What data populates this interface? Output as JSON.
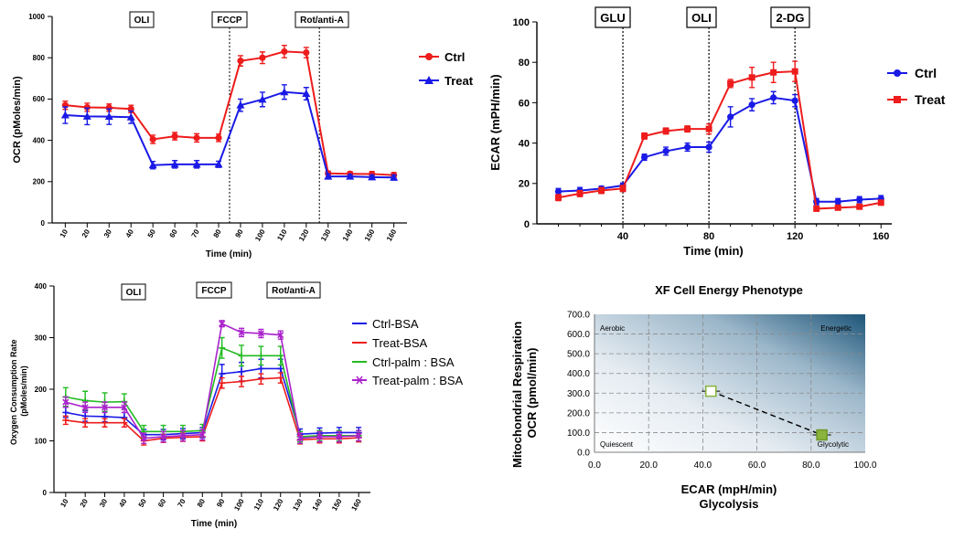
{
  "chart_data": [
    {
      "type": "line",
      "ylabel": "OCR (pMoles/min)",
      "xlabel": "Time (min)",
      "ylim": [
        0,
        1000
      ],
      "yticks": [
        0,
        200,
        400,
        600,
        800,
        1000
      ],
      "x": [
        10,
        20,
        30,
        40,
        50,
        60,
        70,
        80,
        90,
        100,
        110,
        120,
        130,
        140,
        150,
        160
      ],
      "injections": [
        {
          "label": "OLI",
          "x": null
        },
        {
          "label": "FCCP",
          "x": 85
        },
        {
          "label": "Rot/anti-A",
          "x": 126
        }
      ],
      "series": [
        {
          "name": "Ctrl",
          "color": "#ee1c1c",
          "marker": "circle",
          "values": [
            570,
            560,
            558,
            552,
            405,
            420,
            412,
            412,
            785,
            800,
            830,
            825,
            240,
            238,
            237,
            232
          ],
          "errors": [
            20,
            20,
            18,
            18,
            20,
            18,
            20,
            18,
            25,
            28,
            30,
            25,
            10,
            10,
            12,
            12
          ]
        },
        {
          "name": "Treat",
          "color": "#1a1ae6",
          "marker": "triangle",
          "values": [
            522,
            516,
            515,
            512,
            280,
            284,
            284,
            284,
            570,
            598,
            634,
            626,
            225,
            225,
            222,
            220
          ],
          "errors": [
            40,
            40,
            38,
            30,
            18,
            18,
            18,
            15,
            30,
            35,
            35,
            30,
            12,
            10,
            10,
            12
          ]
        }
      ]
    },
    {
      "type": "line",
      "ylabel": "ECAR (mPH/min)",
      "xlabel": "Time (min)",
      "ylim": [
        0,
        100
      ],
      "xlim": [
        0,
        165
      ],
      "yticks": [
        0,
        20,
        40,
        60,
        80,
        100
      ],
      "xticks": [
        40,
        80,
        120,
        160
      ],
      "x": [
        10,
        20,
        30,
        40,
        50,
        60,
        70,
        80,
        90,
        100,
        110,
        120,
        130,
        140,
        150,
        160
      ],
      "injections": [
        {
          "label": "GLU",
          "x": 40
        },
        {
          "label": "OLI",
          "x": 80
        },
        {
          "label": "2-DG",
          "x": 120
        }
      ],
      "series": [
        {
          "name": "Ctrl",
          "color": "#1a1ae6",
          "marker": "circle",
          "values": [
            16,
            16.5,
            17.5,
            19,
            33,
            36,
            38,
            38,
            53,
            59,
            62.5,
            61,
            11,
            11,
            12,
            12.5
          ],
          "errors": [
            1.5,
            1.5,
            1.2,
            1.2,
            1.5,
            2,
            2,
            2.5,
            5,
            3,
            3,
            3,
            1.5,
            1.5,
            1.5,
            1.5
          ]
        },
        {
          "name": "Treat",
          "color": "#ee1c1c",
          "marker": "square",
          "values": [
            13,
            15,
            16.5,
            17.5,
            43.5,
            46,
            47,
            47,
            69.5,
            72.5,
            75,
            75.5,
            7.5,
            8,
            8.5,
            10.5
          ],
          "errors": [
            1.5,
            1.5,
            1.5,
            1.5,
            1.5,
            1.5,
            1.5,
            2.5,
            2,
            5,
            5,
            5,
            1,
            1,
            1,
            1
          ]
        }
      ]
    },
    {
      "type": "line",
      "ylabel": "Oxygen Consumption Rate (pMoles/min)",
      "xlabel": "Time (min)",
      "ylim": [
        0,
        400
      ],
      "yticks": [
        0,
        100,
        200,
        300,
        400
      ],
      "x": [
        10,
        20,
        30,
        40,
        50,
        60,
        70,
        80,
        90,
        100,
        110,
        120,
        130,
        140,
        150,
        160
      ],
      "injections": [
        {
          "label": "OLI",
          "x": null
        },
        {
          "label": "FCCP",
          "x": null
        },
        {
          "label": "Rot/anti-A",
          "x": null
        }
      ],
      "series": [
        {
          "name": "Ctrl-BSA",
          "color": "#1a1ae6",
          "marker": "plus",
          "values": [
            155,
            148,
            147,
            145,
            112,
            112,
            114,
            116,
            230,
            234,
            240,
            240,
            113,
            115,
            116,
            116
          ],
          "errors": [
            10,
            10,
            10,
            10,
            10,
            10,
            10,
            10,
            18,
            18,
            18,
            18,
            10,
            10,
            10,
            10
          ]
        },
        {
          "name": "Treat-BSA",
          "color": "#ee1c1c",
          "marker": "plus",
          "values": [
            140,
            135,
            135,
            135,
            100,
            105,
            107,
            108,
            212,
            215,
            220,
            222,
            102,
            104,
            104,
            106
          ],
          "errors": [
            8,
            8,
            8,
            8,
            8,
            8,
            8,
            8,
            10,
            10,
            10,
            10,
            8,
            8,
            8,
            8
          ]
        },
        {
          "name": "Ctrl-palm : BSA",
          "color": "#22bb22",
          "marker": "plus",
          "values": [
            185,
            178,
            175,
            176,
            118,
            118,
            118,
            120,
            280,
            265,
            265,
            265,
            108,
            110,
            110,
            110
          ],
          "errors": [
            18,
            18,
            18,
            15,
            12,
            12,
            12,
            12,
            20,
            20,
            18,
            18,
            10,
            10,
            10,
            10
          ]
        },
        {
          "name": "Treat-palm : BSA",
          "color": "#aa22cc",
          "marker": "cross",
          "values": [
            175,
            165,
            165,
            165,
            105,
            108,
            110,
            112,
            327,
            310,
            308,
            305,
            105,
            108,
            108,
            110
          ],
          "errors": [
            10,
            10,
            10,
            10,
            10,
            10,
            10,
            10,
            6,
            8,
            8,
            8,
            10,
            10,
            10,
            10
          ]
        }
      ]
    },
    {
      "type": "scatter",
      "title": "XF Cell Energy Phenotype",
      "ylabel_line1": "Mitochondrial Respiration",
      "ylabel_line2": "OCR (pmol/min)",
      "xlabel_line1": "ECAR (mpH/min)",
      "xlabel_line2": "Glycolysis",
      "xlim": [
        0,
        100
      ],
      "ylim": [
        0,
        700
      ],
      "xticks": [
        "0.0",
        "20.0",
        "40.0",
        "60.0",
        "80.0",
        "100.0"
      ],
      "yticks": [
        "0.0",
        "100.0",
        "200.0",
        "300.0",
        "400.0",
        "500.0",
        "600.0",
        "700.0"
      ],
      "grid": true,
      "quadrants": {
        "top_left": "Aerobic",
        "top_right": "Energetic",
        "bottom_left": "Quiescent",
        "bottom_right": "Glycolytic"
      },
      "points": [
        {
          "x": 43,
          "y": 310,
          "color": "#ffffff",
          "border": "#8ab43c"
        },
        {
          "x": 84,
          "y": 88,
          "color": "#8ab43c",
          "border": "#6e9a28"
        }
      ]
    }
  ]
}
